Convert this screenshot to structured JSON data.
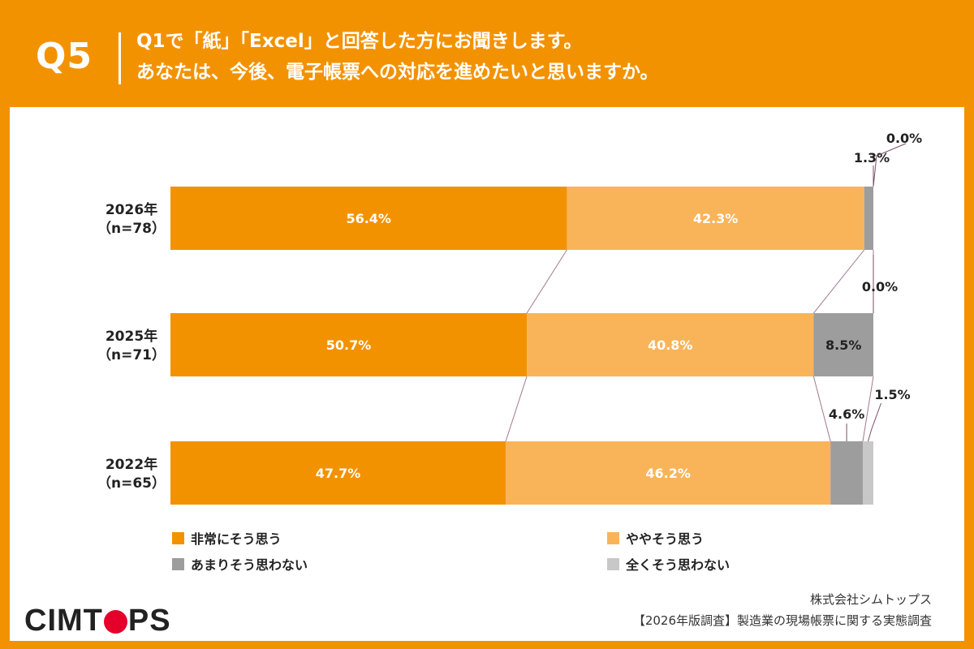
{
  "header": {
    "qnum": "Q5",
    "title_line1": "Q1で「紙」「Excel」と回答した方にお聞きします。",
    "title_line2": "あなたは、今後、電子帳票への対応を進めたいと思いますか。"
  },
  "colors": {
    "brand": "#F39200",
    "series": [
      "#F39200",
      "#F9B45A",
      "#9D9D9D",
      "#C8C8C8"
    ]
  },
  "chart_data": {
    "type": "bar",
    "orientation": "horizontal",
    "stacked": true,
    "categories": [
      {
        "year": "2026年",
        "n": "（n=78）"
      },
      {
        "year": "2025年",
        "n": "（n=71）"
      },
      {
        "year": "2022年",
        "n": "（n=65）"
      }
    ],
    "series": [
      {
        "name": "非常にそう思う",
        "values": [
          56.4,
          50.7,
          47.7
        ],
        "labels": [
          "56.4%",
          "50.7%",
          "47.7%"
        ]
      },
      {
        "name": "ややそう思う",
        "values": [
          42.3,
          40.8,
          46.2
        ],
        "labels": [
          "42.3%",
          "40.8%",
          "46.2%"
        ]
      },
      {
        "name": "あまりそう思わない",
        "values": [
          1.3,
          8.5,
          4.6
        ],
        "labels": [
          "1.3%",
          "8.5%",
          "4.6%"
        ]
      },
      {
        "name": "全くそう思わない",
        "values": [
          0.0,
          0.0,
          1.5
        ],
        "labels": [
          "0.0%",
          "0.0%",
          "1.5%"
        ]
      }
    ],
    "xlim": [
      0,
      100
    ],
    "legend_position": "bottom",
    "grid": false
  },
  "legend": [
    {
      "label": "非常にそう思う"
    },
    {
      "label": "ややそう思う"
    },
    {
      "label": "あまりそう思わない"
    },
    {
      "label": "全くそう思わない"
    }
  ],
  "footer": {
    "logo": "CIMTOPS",
    "company": "株式会社シムトップス",
    "survey": "【2026年版調査】製造業の現場帳票に関する実態調査"
  }
}
